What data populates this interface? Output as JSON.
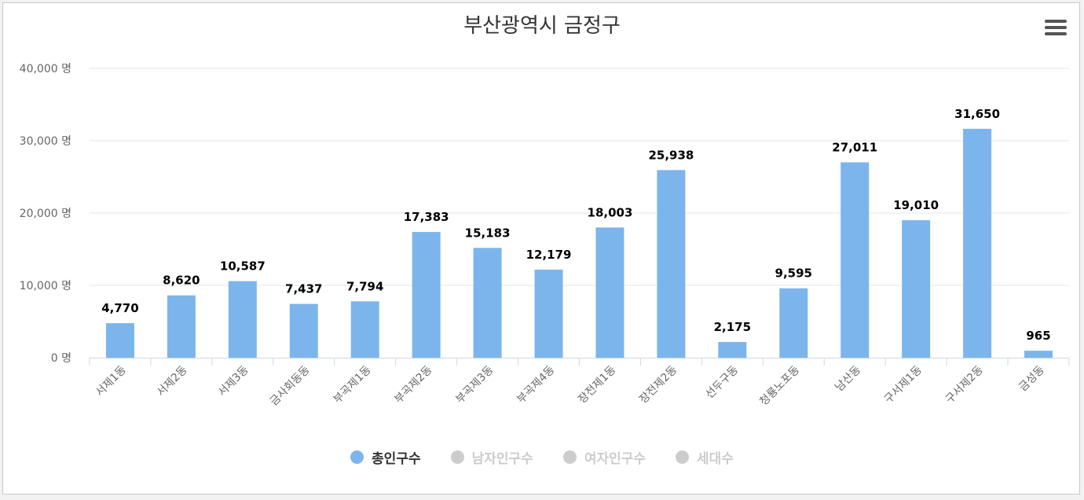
{
  "chart_data": {
    "type": "bar",
    "title": "부산광역시 금정구",
    "categories": [
      "서제1동",
      "서제2동",
      "서제3동",
      "금사회동동",
      "부곡제1동",
      "부곡제2동",
      "부곡제3동",
      "부곡제4동",
      "장전제1동",
      "장전제2동",
      "선두구동",
      "청룡노포동",
      "남산동",
      "구서제1동",
      "구서제2동",
      "금성동"
    ],
    "series": [
      {
        "name": "총인구수",
        "values": [
          4770,
          8620,
          10587,
          7437,
          7794,
          17383,
          15183,
          12179,
          18003,
          25938,
          2175,
          9595,
          27011,
          19010,
          31650,
          965
        ],
        "labels": [
          "4,770",
          "8,620",
          "10,587",
          "7,437",
          "7,794",
          "17,383",
          "15,183",
          "12,179",
          "18,003",
          "25,938",
          "2,175",
          "9,595",
          "27,011",
          "19,010",
          "31,650",
          "965"
        ]
      }
    ],
    "y_ticks": [
      {
        "value": 0,
        "label": "0 명"
      },
      {
        "value": 10000,
        "label": "10,000 명"
      },
      {
        "value": 20000,
        "label": "20,000 명"
      },
      {
        "value": 30000,
        "label": "30,000 명"
      },
      {
        "value": 40000,
        "label": "40,000 명"
      }
    ],
    "ylim": [
      0,
      40000
    ],
    "grid": true,
    "legend_position": "bottom-center",
    "bar_color": "#7cb5ec"
  },
  "legend": {
    "items": [
      {
        "label": "총인구수",
        "active": true,
        "color": "#7cb5ec"
      },
      {
        "label": "남자인구수",
        "active": false,
        "color": "#cccccc"
      },
      {
        "label": "여자인구수",
        "active": false,
        "color": "#cccccc"
      },
      {
        "label": "세대수",
        "active": false,
        "color": "#cccccc"
      }
    ]
  },
  "toolbar": {
    "menu_icon": "hamburger-menu-icon"
  }
}
